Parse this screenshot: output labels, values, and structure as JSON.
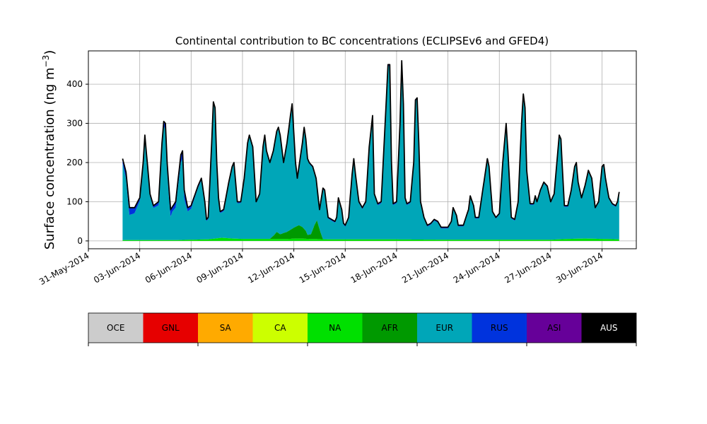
{
  "chart_data": {
    "type": "area",
    "title": "Continental contribution to BC concentrations (ECLIPSEv6 and GFED4)",
    "ylabel": "Surface concentration (ng m",
    "ylabel_sup": "−3",
    "ylabel_close": ")",
    "xlabel": "",
    "grid": true,
    "x_start": "2014-06-01",
    "x_end": "2014-06-30",
    "xlim": [
      "2014-05-31",
      "2014-07-02"
    ],
    "ylim": [
      -20,
      485
    ],
    "x_ticks": [
      "31-May-2014",
      "03-Jun-2014",
      "06-Jun-2014",
      "09-Jun-2014",
      "12-Jun-2014",
      "15-Jun-2014",
      "18-Jun-2014",
      "21-Jun-2014",
      "24-Jun-2014",
      "27-Jun-2014",
      "30-Jun-2014"
    ],
    "y_ticks": [
      0,
      100,
      200,
      300,
      400
    ],
    "total_keyframes": [
      [
        1.0,
        210
      ],
      [
        1.2,
        175
      ],
      [
        1.4,
        85
      ],
      [
        1.7,
        85
      ],
      [
        2.0,
        110
      ],
      [
        2.2,
        200
      ],
      [
        2.3,
        270
      ],
      [
        2.4,
        220
      ],
      [
        2.6,
        120
      ],
      [
        2.8,
        90
      ],
      [
        3.1,
        100
      ],
      [
        3.3,
        250
      ],
      [
        3.4,
        305
      ],
      [
        3.5,
        300
      ],
      [
        3.6,
        200
      ],
      [
        3.8,
        80
      ],
      [
        4.1,
        100
      ],
      [
        4.4,
        220
      ],
      [
        4.5,
        230
      ],
      [
        4.6,
        130
      ],
      [
        4.8,
        85
      ],
      [
        5.0,
        90
      ],
      [
        5.4,
        140
      ],
      [
        5.6,
        160
      ],
      [
        5.8,
        100
      ],
      [
        5.9,
        55
      ],
      [
        6.0,
        60
      ],
      [
        6.2,
        250
      ],
      [
        6.3,
        355
      ],
      [
        6.4,
        340
      ],
      [
        6.5,
        200
      ],
      [
        6.6,
        110
      ],
      [
        6.7,
        75
      ],
      [
        6.9,
        80
      ],
      [
        7.2,
        150
      ],
      [
        7.4,
        190
      ],
      [
        7.5,
        200
      ],
      [
        7.7,
        100
      ],
      [
        7.9,
        100
      ],
      [
        8.1,
        160
      ],
      [
        8.3,
        250
      ],
      [
        8.4,
        270
      ],
      [
        8.6,
        240
      ],
      [
        8.8,
        100
      ],
      [
        9.0,
        120
      ],
      [
        9.2,
        240
      ],
      [
        9.3,
        270
      ],
      [
        9.4,
        230
      ],
      [
        9.6,
        200
      ],
      [
        9.8,
        230
      ],
      [
        10.0,
        280
      ],
      [
        10.1,
        290
      ],
      [
        10.2,
        270
      ],
      [
        10.4,
        200
      ],
      [
        10.6,
        250
      ],
      [
        10.8,
        320
      ],
      [
        10.9,
        350
      ],
      [
        11.1,
        200
      ],
      [
        11.2,
        160
      ],
      [
        11.5,
        250
      ],
      [
        11.6,
        290
      ],
      [
        11.7,
        260
      ],
      [
        11.8,
        210
      ],
      [
        11.9,
        200
      ],
      [
        12.1,
        190
      ],
      [
        12.3,
        160
      ],
      [
        12.5,
        80
      ],
      [
        12.7,
        135
      ],
      [
        12.8,
        130
      ],
      [
        13.0,
        60
      ],
      [
        13.2,
        55
      ],
      [
        13.4,
        50
      ],
      [
        13.5,
        60
      ],
      [
        13.6,
        110
      ],
      [
        13.8,
        80
      ],
      [
        13.9,
        45
      ],
      [
        14.0,
        40
      ],
      [
        14.2,
        60
      ],
      [
        14.4,
        170
      ],
      [
        14.5,
        210
      ],
      [
        14.6,
        170
      ],
      [
        14.8,
        100
      ],
      [
        15.0,
        85
      ],
      [
        15.2,
        100
      ],
      [
        15.4,
        240
      ],
      [
        15.6,
        320
      ],
      [
        15.7,
        120
      ],
      [
        15.9,
        95
      ],
      [
        16.1,
        100
      ],
      [
        16.4,
        360
      ],
      [
        16.5,
        450
      ],
      [
        16.6,
        450
      ],
      [
        16.7,
        200
      ],
      [
        16.8,
        95
      ],
      [
        17.0,
        100
      ],
      [
        17.2,
        300
      ],
      [
        17.3,
        460
      ],
      [
        17.4,
        350
      ],
      [
        17.5,
        110
      ],
      [
        17.6,
        95
      ],
      [
        17.8,
        100
      ],
      [
        18.0,
        200
      ],
      [
        18.1,
        360
      ],
      [
        18.2,
        365
      ],
      [
        18.3,
        250
      ],
      [
        18.4,
        100
      ],
      [
        18.6,
        60
      ],
      [
        18.8,
        40
      ],
      [
        19.0,
        45
      ],
      [
        19.2,
        55
      ],
      [
        19.4,
        50
      ],
      [
        19.6,
        35
      ],
      [
        20.0,
        35
      ],
      [
        20.2,
        50
      ],
      [
        20.3,
        85
      ],
      [
        20.5,
        65
      ],
      [
        20.6,
        40
      ],
      [
        20.9,
        40
      ],
      [
        21.2,
        80
      ],
      [
        21.3,
        115
      ],
      [
        21.5,
        90
      ],
      [
        21.6,
        60
      ],
      [
        21.8,
        60
      ],
      [
        22.0,
        120
      ],
      [
        22.3,
        210
      ],
      [
        22.4,
        190
      ],
      [
        22.6,
        75
      ],
      [
        22.8,
        60
      ],
      [
        23.0,
        70
      ],
      [
        23.2,
        200
      ],
      [
        23.4,
        300
      ],
      [
        23.5,
        230
      ],
      [
        23.7,
        60
      ],
      [
        23.9,
        55
      ],
      [
        24.1,
        100
      ],
      [
        24.3,
        300
      ],
      [
        24.4,
        375
      ],
      [
        24.5,
        340
      ],
      [
        24.6,
        180
      ],
      [
        24.8,
        95
      ],
      [
        25.0,
        95
      ],
      [
        25.1,
        115
      ],
      [
        25.2,
        100
      ],
      [
        25.4,
        130
      ],
      [
        25.6,
        150
      ],
      [
        25.8,
        140
      ],
      [
        26.0,
        100
      ],
      [
        26.2,
        120
      ],
      [
        26.4,
        220
      ],
      [
        26.5,
        270
      ],
      [
        26.6,
        260
      ],
      [
        26.7,
        170
      ],
      [
        26.8,
        90
      ],
      [
        27.0,
        90
      ],
      [
        27.2,
        130
      ],
      [
        27.4,
        190
      ],
      [
        27.5,
        200
      ],
      [
        27.6,
        150
      ],
      [
        27.8,
        110
      ],
      [
        28.0,
        140
      ],
      [
        28.2,
        180
      ],
      [
        28.4,
        160
      ],
      [
        28.5,
        120
      ],
      [
        28.6,
        85
      ],
      [
        28.8,
        100
      ],
      [
        29.0,
        190
      ],
      [
        29.1,
        195
      ],
      [
        29.2,
        160
      ],
      [
        29.4,
        110
      ],
      [
        29.6,
        95
      ],
      [
        29.8,
        90
      ],
      [
        29.9,
        100
      ],
      [
        30.0,
        125
      ]
    ],
    "na_keyframes": [
      [
        1.0,
        2
      ],
      [
        4.0,
        2
      ],
      [
        6.0,
        4
      ],
      [
        6.8,
        8
      ],
      [
        7.4,
        6
      ],
      [
        8.0,
        5
      ],
      [
        10.6,
        5
      ],
      [
        11.2,
        6
      ],
      [
        12.0,
        5
      ],
      [
        13.0,
        4
      ],
      [
        16.0,
        4
      ],
      [
        20.0,
        3
      ],
      [
        24.0,
        3
      ],
      [
        26.0,
        3
      ],
      [
        27.0,
        5
      ],
      [
        28.0,
        6
      ],
      [
        29.0,
        5
      ],
      [
        30.0,
        4
      ]
    ],
    "afr_keyframes": [
      [
        1.0,
        0
      ],
      [
        9.6,
        0
      ],
      [
        9.85,
        10
      ],
      [
        10.0,
        18
      ],
      [
        10.2,
        12
      ],
      [
        10.6,
        18
      ],
      [
        11.0,
        28
      ],
      [
        11.3,
        34
      ],
      [
        11.5,
        30
      ],
      [
        11.7,
        20
      ],
      [
        11.8,
        10
      ],
      [
        12.0,
        12
      ],
      [
        12.2,
        35
      ],
      [
        12.35,
        48
      ],
      [
        12.55,
        18
      ],
      [
        12.7,
        0
      ],
      [
        30.0,
        0
      ]
    ],
    "rus_keyframes": [
      [
        1.0,
        12
      ],
      [
        1.3,
        20
      ],
      [
        1.6,
        16
      ],
      [
        2.0,
        8
      ],
      [
        2.8,
        6
      ],
      [
        3.4,
        12
      ],
      [
        3.7,
        25
      ],
      [
        3.9,
        12
      ],
      [
        4.3,
        18
      ],
      [
        4.6,
        22
      ],
      [
        4.8,
        10
      ],
      [
        5.2,
        6
      ],
      [
        6.0,
        4
      ],
      [
        7.0,
        4
      ],
      [
        9.0,
        3
      ],
      [
        12.0,
        3
      ],
      [
        16.0,
        4
      ],
      [
        20.0,
        3
      ],
      [
        24.0,
        3
      ],
      [
        28.0,
        3
      ],
      [
        30.0,
        3
      ]
    ],
    "legend": {
      "categories": [
        "OCE",
        "GNL",
        "SA",
        "CA",
        "NA",
        "AFR",
        "EUR",
        "RUS",
        "ASI",
        "AUS"
      ],
      "colors": [
        "#cccccc",
        "#e60000",
        "#ffaa00",
        "#ccff00",
        "#00e000",
        "#009900",
        "#00a6b8",
        "#0033dd",
        "#660099",
        "#000000"
      ],
      "text_colors": [
        "#000000",
        "#000000",
        "#000000",
        "#000000",
        "#000000",
        "#000000",
        "#000000",
        "#000000",
        "#000000",
        "#ffffff"
      ]
    },
    "series_colors": {
      "NA": "#00e000",
      "AFR": "#009900",
      "EUR": "#00a6b8",
      "RUS": "#0033dd",
      "AUS": "#000000"
    }
  }
}
